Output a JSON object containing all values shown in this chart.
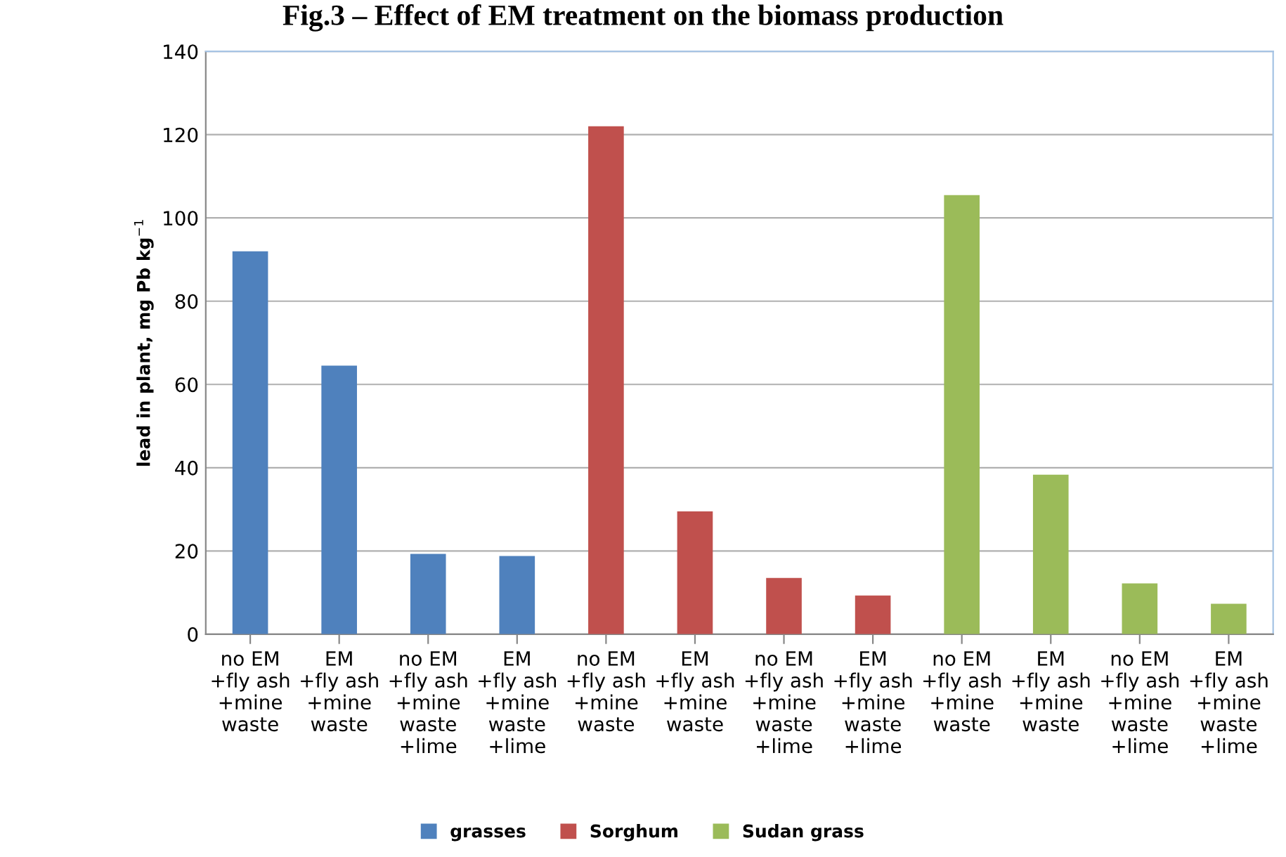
{
  "chart_data": {
    "type": "bar",
    "title": "Fig.3 – Effect of EM treatment on the biomass production",
    "ylabel": "lead in plant, mg Pb kg$^{−1}$",
    "categories": [
      "no EM\n+fly ash\n+mine\nwaste",
      "EM\n+fly ash\n+mine\nwaste",
      "no EM\n+fly ash\n+mine\nwaste\n+lime",
      "EM\n+fly ash\n+mine\nwaste\n+lime",
      "no EM\n+fly ash\n+mine\nwaste",
      "EM\n+fly ash\n+mine\nwaste",
      "no EM\n+fly ash\n+mine\nwaste\n+lime",
      "EM\n+fly ash\n+mine\nwaste\n+lime",
      "no EM\n+fly ash\n+mine\nwaste",
      "EM\n+fly ash\n+mine\nwaste",
      "no EM\n+fly ash\n+mine\nwaste\n+lime",
      "EM\n+fly ash\n+mine\nwaste\n+lime"
    ],
    "series": [
      {
        "name": "grasses",
        "color": "#4f81bd",
        "values": [
          92,
          64.5,
          19.3,
          18.8,
          null,
          null,
          null,
          null,
          null,
          null,
          null,
          null
        ]
      },
      {
        "name": "Sorghum",
        "color": "#c0504d",
        "values": [
          null,
          null,
          null,
          null,
          122,
          29.5,
          13.5,
          9.3,
          null,
          null,
          null,
          null
        ]
      },
      {
        "name": "Sudan grass",
        "color": "#9bbb59",
        "values": [
          null,
          null,
          null,
          null,
          null,
          null,
          null,
          null,
          105.5,
          38.3,
          12.2,
          7.3
        ]
      }
    ],
    "ylim": [
      0,
      140
    ],
    "yticks": [
      0,
      20,
      40,
      60,
      80,
      100,
      120,
      140
    ],
    "grid": "y",
    "legend": "bottom"
  }
}
